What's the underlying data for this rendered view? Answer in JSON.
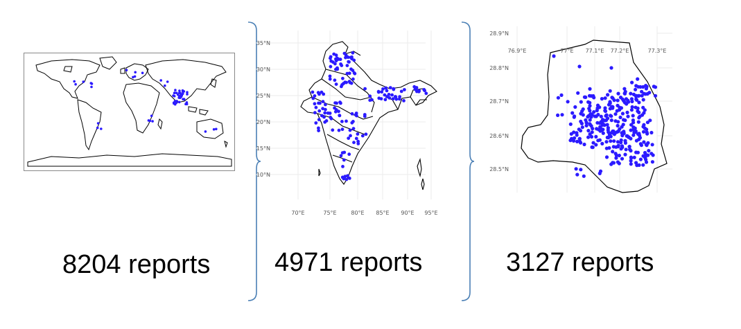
{
  "panels": {
    "world": {
      "count_label": "8204 reports"
    },
    "india": {
      "count_label": "4971 reports",
      "y_ticks": [
        "35°N",
        "30°N",
        "25°N",
        "20°N",
        "15°N",
        "10°N"
      ],
      "x_ticks": [
        "70°E",
        "75°E",
        "80°E",
        "85°E",
        "90°E",
        "95°E"
      ]
    },
    "delhi": {
      "count_label": "3127 reports",
      "y_ticks": [
        "28.9°N",
        "28.8°N",
        "28.7°N",
        "28.6°N",
        "28.5°N"
      ],
      "x_ticks": [
        "76.9°E",
        "77°E",
        "77.1°E",
        "77.2°E",
        "77.3°E"
      ]
    }
  },
  "colors": {
    "point": "#2b1aff",
    "outline": "#000000",
    "brace": "#4a7fb5",
    "grid": "#ebebeb"
  }
}
